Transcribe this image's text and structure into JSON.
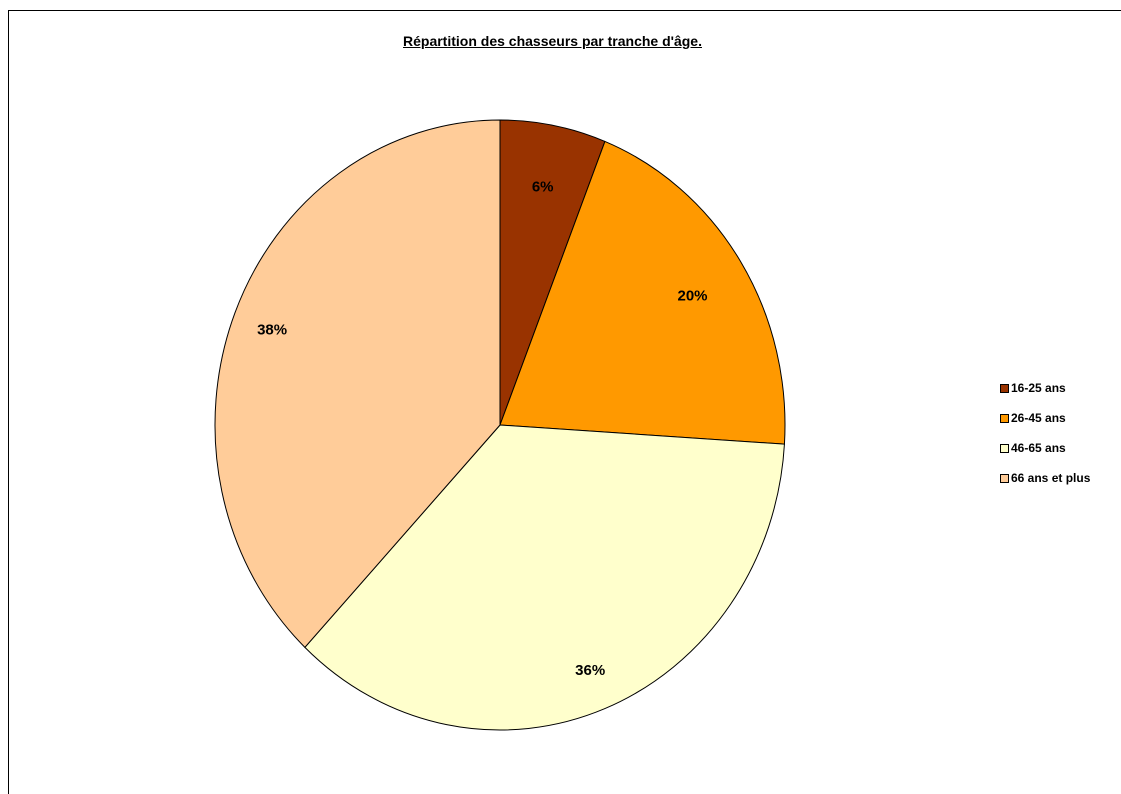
{
  "chart_data": {
    "type": "pie",
    "title": "Répartition des chasseurs par tranche d'âge.",
    "categories": [
      "16-25 ans",
      "26-45 ans",
      "46-65 ans",
      "66 ans et plus"
    ],
    "values": [
      6,
      20,
      36,
      38
    ],
    "labels": [
      "6%",
      "20%",
      "36%",
      "38%"
    ],
    "colors": [
      "#993300",
      "#FF9900",
      "#FFFFCC",
      "#FFCC99"
    ],
    "start_angle": "12 o'clock, clockwise",
    "legend_position": "right"
  }
}
